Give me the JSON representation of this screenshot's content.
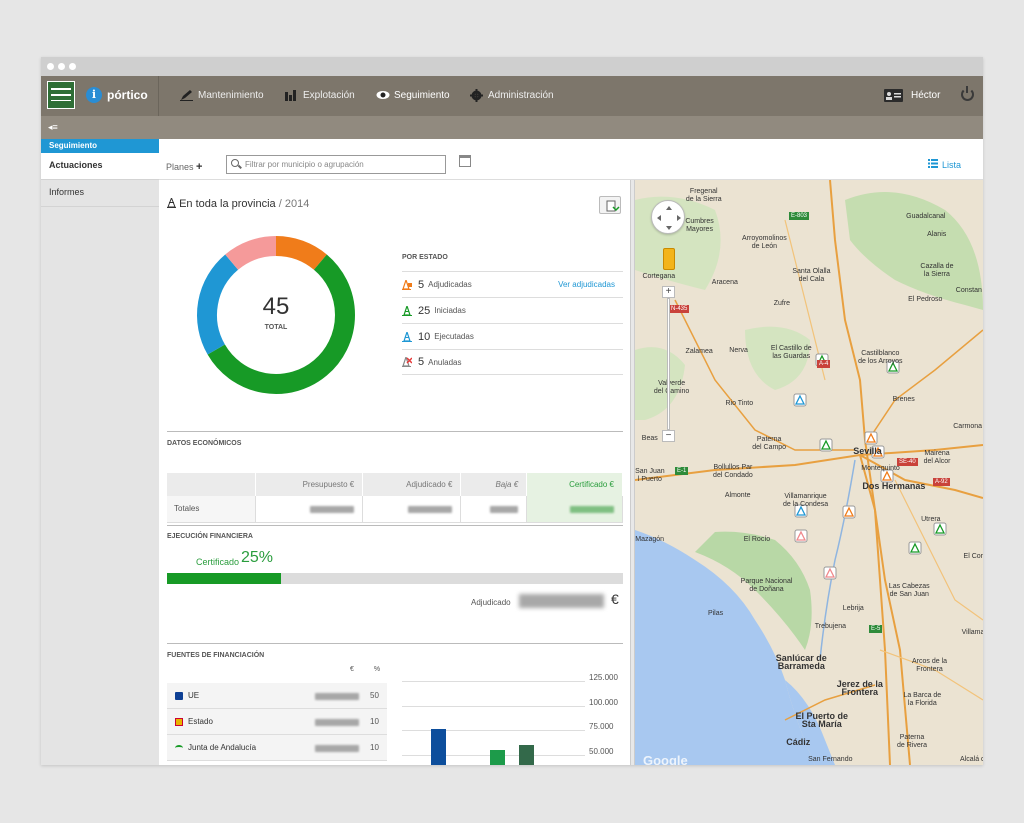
{
  "app": {
    "brand": "pórtico",
    "user": "Héctor",
    "collapse_icon": "◂≡"
  },
  "nav": [
    {
      "label": "Mantenimiento",
      "icon": "pencil-icon"
    },
    {
      "label": "Explotación",
      "icon": "bar-chart-icon"
    },
    {
      "label": "Seguimiento",
      "icon": "eye-icon",
      "active": true
    },
    {
      "label": "Administración",
      "icon": "gear-icon"
    }
  ],
  "sidebar": {
    "section": "Seguimiento",
    "items": [
      {
        "label": "Actuaciones",
        "active": true
      },
      {
        "label": "Informes"
      }
    ]
  },
  "toolbar": {
    "planes": "Planes",
    "plus": "+",
    "search_placeholder": "Filtrar por municipio o agrupación",
    "lista": "Lista"
  },
  "summary": {
    "title": "En toda la provincia",
    "year": "/ 2014",
    "total": "45",
    "total_label": "TOTAL"
  },
  "estado": {
    "header": "POR ESTADO",
    "rows": [
      {
        "count": "5",
        "label": "Adjudicadas",
        "color": "#f07c1a",
        "link": "Ver adjudicadas"
      },
      {
        "count": "25",
        "label": "Iniciadas",
        "color": "#179a26"
      },
      {
        "count": "10",
        "label": "Ejecutadas",
        "color": "#1f97d4"
      },
      {
        "count": "5",
        "label": "Anuladas",
        "color": "#f0898c"
      }
    ]
  },
  "chart_data": [
    {
      "type": "pie",
      "title": "",
      "categories": [
        "Adjudicadas",
        "Iniciadas",
        "Ejecutadas",
        "Anuladas"
      ],
      "values": [
        5,
        25,
        10,
        5
      ],
      "colors": [
        "#f07c1a",
        "#179a26",
        "#1f97d4",
        "#f59a9a"
      ]
    },
    {
      "type": "bar",
      "title": "",
      "ylim": [
        0,
        125000
      ],
      "yticks": [
        "125.000",
        "100.000",
        "75.000",
        "50.000"
      ],
      "values_visible": [
        76000,
        55000,
        60000
      ],
      "colors": [
        "#0d4e9c",
        "#1d9b4a",
        "#33694a"
      ]
    }
  ],
  "economicos": {
    "header": "DATOS ECONÓMICOS",
    "columns": [
      "Presupuesto €",
      "Adjudicado €",
      "Baja €",
      "Certificado €"
    ],
    "row_label": "Totales"
  },
  "ejecucion": {
    "header": "EJECUCIÓN FINANCIERA",
    "cert_label": "Certificado",
    "cert_pct": "25%",
    "progress": 0.25,
    "adj_label": "Adjudicado",
    "euro": "€"
  },
  "fuentes": {
    "header": "FUENTES DE FINANCIACIÓN",
    "col_euro": "€",
    "col_pct": "%",
    "rows": [
      {
        "label": "UE",
        "pct": "50",
        "icon": "eu-flag-icon"
      },
      {
        "label": "Estado",
        "pct": "10",
        "icon": "spain-crest-icon"
      },
      {
        "label": "Junta de Andalucía",
        "pct": "10",
        "icon": "andalucia-icon"
      }
    ]
  },
  "map": {
    "labels": [
      [
        "Fregenal\nde la Sierra"
      ],
      [
        "Cumbres\nMayores"
      ],
      [
        "Arroyomolinos\nde León"
      ],
      [
        "Cortegana"
      ],
      [
        "Aracena"
      ],
      [
        "Santa Olalla\ndel Cala"
      ],
      [
        "Guadalcanal"
      ],
      [
        "Alanis"
      ],
      [
        "Cazalla de\nla Sierra"
      ],
      [
        "El Pedroso"
      ],
      [
        "Constan"
      ],
      [
        "Zufre"
      ],
      [
        "El Castillo de\nlas Guardas"
      ],
      [
        "Castilblanco\nde los Arroyos"
      ],
      [
        "Zalamea"
      ],
      [
        "Nerva"
      ],
      [
        "Valverde\ndel Camino"
      ],
      [
        "Rio Tinto"
      ],
      [
        "Brenes"
      ],
      [
        "Carmona"
      ],
      [
        "Paterna\ndel Campo"
      ],
      [
        "Sevilla"
      ],
      [
        "Mairena\ndel Alcor"
      ],
      [
        "Bollullos Par\ndel Condado"
      ],
      [
        "Montequinto"
      ],
      [
        "Dos Hermanas"
      ],
      [
        "San Juan\nl Puerto"
      ],
      [
        "Almonte"
      ],
      [
        "Villamanrique\nde la Condesa"
      ],
      [
        "Utrera"
      ],
      [
        "Mazagón"
      ],
      [
        "El Rocío"
      ],
      [
        "Parque Nacional\nde Doñana"
      ],
      [
        "El Coron"
      ],
      [
        "Las Cabezas\nde San Juan"
      ],
      [
        "Lebrija"
      ],
      [
        "Trebujena"
      ],
      [
        "Villamart"
      ],
      [
        "Sanlúcar de\nBarrameda"
      ],
      [
        "Arcos de la\nFrontera"
      ],
      [
        "Jerez de la\nFrontera"
      ],
      [
        "La Barca de\nla Florida"
      ],
      [
        "El Puerto de\nSta María"
      ],
      [
        "Cádiz"
      ],
      [
        "Paterna\nde Rivera"
      ],
      [
        "San Fernando"
      ],
      [
        "Alcalá d"
      ],
      [
        "Pilas"
      ],
      [
        "Beas"
      ]
    ],
    "roads": [
      "N-435",
      "E-803",
      "A-4",
      "SE-40",
      "A-92",
      "E-5",
      "E-1"
    ],
    "attribution": "Google"
  }
}
